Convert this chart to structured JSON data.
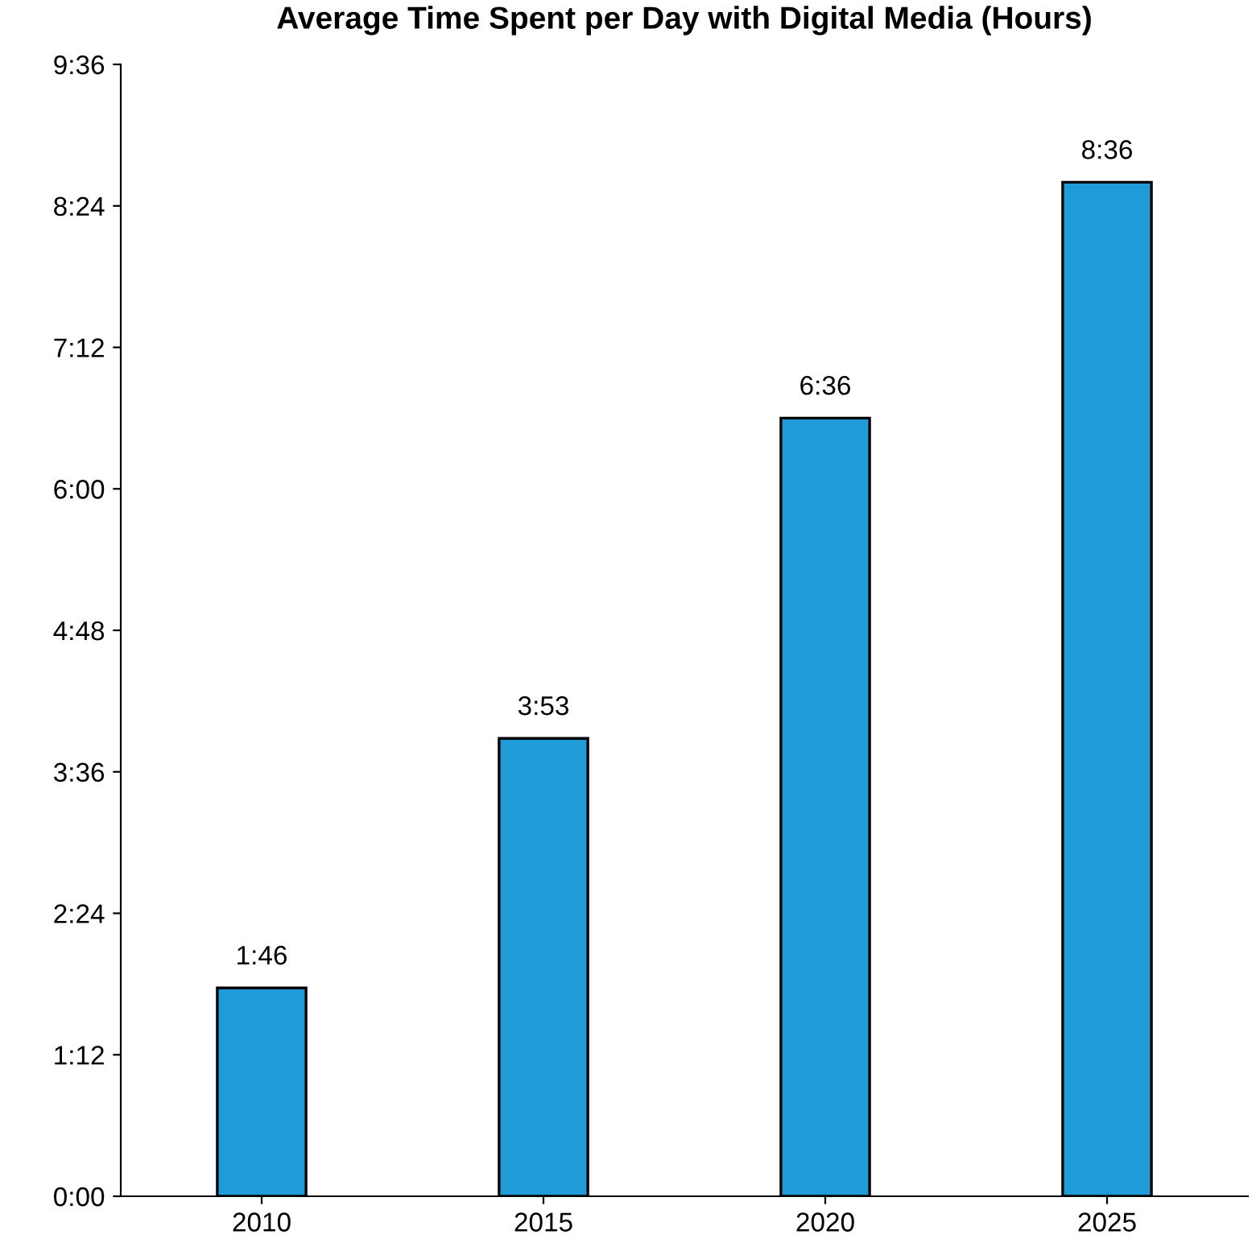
{
  "chart_data": {
    "type": "bar",
    "title": "Average Time Spent per Day with Digital Media (Hours)",
    "categories": [
      "2010",
      "2015",
      "2020",
      "2025"
    ],
    "values": [
      1.7667,
      3.8833,
      6.6,
      8.6
    ],
    "value_labels": [
      "1:46",
      "3:53",
      "6:36",
      "8:36"
    ],
    "color": "#1f9bd7",
    "ylim": [
      0,
      9.6
    ],
    "yticks": [
      {
        "value": 0,
        "label": "0:00"
      },
      {
        "value": 1.2,
        "label": "1:12"
      },
      {
        "value": 2.4,
        "label": "2:24"
      },
      {
        "value": 3.6,
        "label": "3:36"
      },
      {
        "value": 4.8,
        "label": "4:48"
      },
      {
        "value": 6,
        "label": "6:00"
      },
      {
        "value": 7.2,
        "label": "7:12"
      },
      {
        "value": 8.4,
        "label": "8:24"
      },
      {
        "value": 9.6,
        "label": "9:36"
      }
    ],
    "grid": false,
    "legend": false
  }
}
